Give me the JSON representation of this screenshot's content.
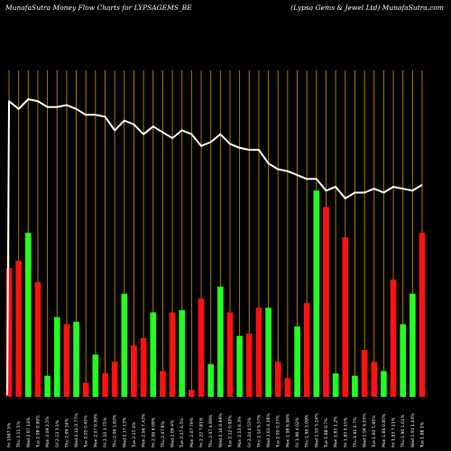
{
  "header": {
    "left": "MunafaSutra  Money Flow  Charts for LYPSAGEMS_BE",
    "right": "(Lypsa  Gems & Jewel Ltd) MunafaSutra.com"
  },
  "colors": {
    "background": "#000000",
    "up": "#22ff22",
    "down": "#ff1111",
    "grid": "#b8860b",
    "line": "#ffffff",
    "axis_text": "#ffffff"
  },
  "chart_data": {
    "type": "bar",
    "grid": true,
    "categories": [
      "Fri 1997.5%",
      "Thu 2.11 5%",
      "Wed 2 87 14%",
      "Tue 2.08 0.90%",
      "Mon 2.09 2.5%",
      "Fri 2.13 1.1%",
      "Thu 2.09 34%",
      "Wed 2.12 0.77%",
      "Tue 2.05 0.45%",
      "Mon 2.07 0.99%",
      "Fri 2.10 3.75%",
      "Thu 2.06 1.82%",
      "Wed 2.17 13%",
      "Tue 2.15 4%",
      "Mon 2.06 7.43%",
      "Fri 2.06 6.09%",
      "Thu 2.07 8%",
      "Wed 2.09 4%",
      "Tue 2.17 6.5%",
      "Mon 2.07 79%",
      "Fri 2.22 7.81%",
      "Thu 2.07 4.89%",
      "Wed 2.16 6.99%",
      "Tue 2.12 0.92%",
      "Mon 2.12 6.3%",
      "Fri 2.24 4.53%",
      "Thu 2.14 9.57%",
      "Wed 2.01 6.28%",
      "Tue 2.00 0.37%",
      "Mon 1.98 6.94%",
      "Fri 1.98 4.02%",
      "Thu 1.96 3.09%",
      "Wed 1.93 5.24%",
      "Tue 1.88 0.7%",
      "Mon 1.85 1.2%",
      "Fri 1.83 0.15%",
      "Thu 1.91 4.7%",
      "Wed 1.94 6.05%",
      "Tue 1.93 5.95%",
      "Mon 1.86 0.85%",
      "Fri 1.93 7.11%",
      "Thu 1.90 1.61%",
      "Wed 1.91 1.03%",
      "Tue 1.88 1%"
    ],
    "series": [
      {
        "values": [
          -0.55,
          -0.58,
          0.7,
          -0.49,
          0.09,
          0.34,
          -0.31,
          0.32,
          -0.06,
          0.18,
          -0.1,
          -0.15,
          0.44,
          -0.22,
          -0.25,
          0.36,
          -0.11,
          -0.36,
          0.37,
          -0.03,
          -0.42,
          0.14,
          0.47,
          -0.36,
          0.26,
          -0.27,
          -0.38,
          0.38,
          -0.15,
          -0.08,
          0.3,
          -0.4,
          0.88,
          -0.81,
          0.1,
          -0.68,
          0.09,
          -0.2,
          -0.15,
          0.11,
          -0.5,
          0.31,
          0.44,
          -0.7
        ],
        "bar_colors": [
          "down",
          "down",
          "up",
          "down",
          "up",
          "up",
          "down",
          "up",
          "down",
          "up",
          "down",
          "down",
          "up",
          "down",
          "down",
          "up",
          "down",
          "down",
          "up",
          "down",
          "down",
          "up",
          "up",
          "down",
          "up",
          "down",
          "down",
          "up",
          "down",
          "down",
          "up",
          "down",
          "up",
          "down",
          "up",
          "down",
          "up",
          "down",
          "down",
          "up",
          "down",
          "up",
          "up",
          "down"
        ]
      },
      {
        "name": "money flow line",
        "values": [
          95,
          91,
          96,
          95,
          92,
          92,
          93,
          91,
          88,
          88,
          87,
          80,
          85,
          83,
          78,
          82,
          79,
          76,
          80,
          78,
          72,
          74,
          78,
          73,
          71,
          70,
          70,
          63,
          60,
          59,
          57,
          55,
          55,
          49,
          51,
          45,
          48,
          48,
          50,
          48,
          51,
          50,
          49,
          52
        ]
      }
    ]
  }
}
